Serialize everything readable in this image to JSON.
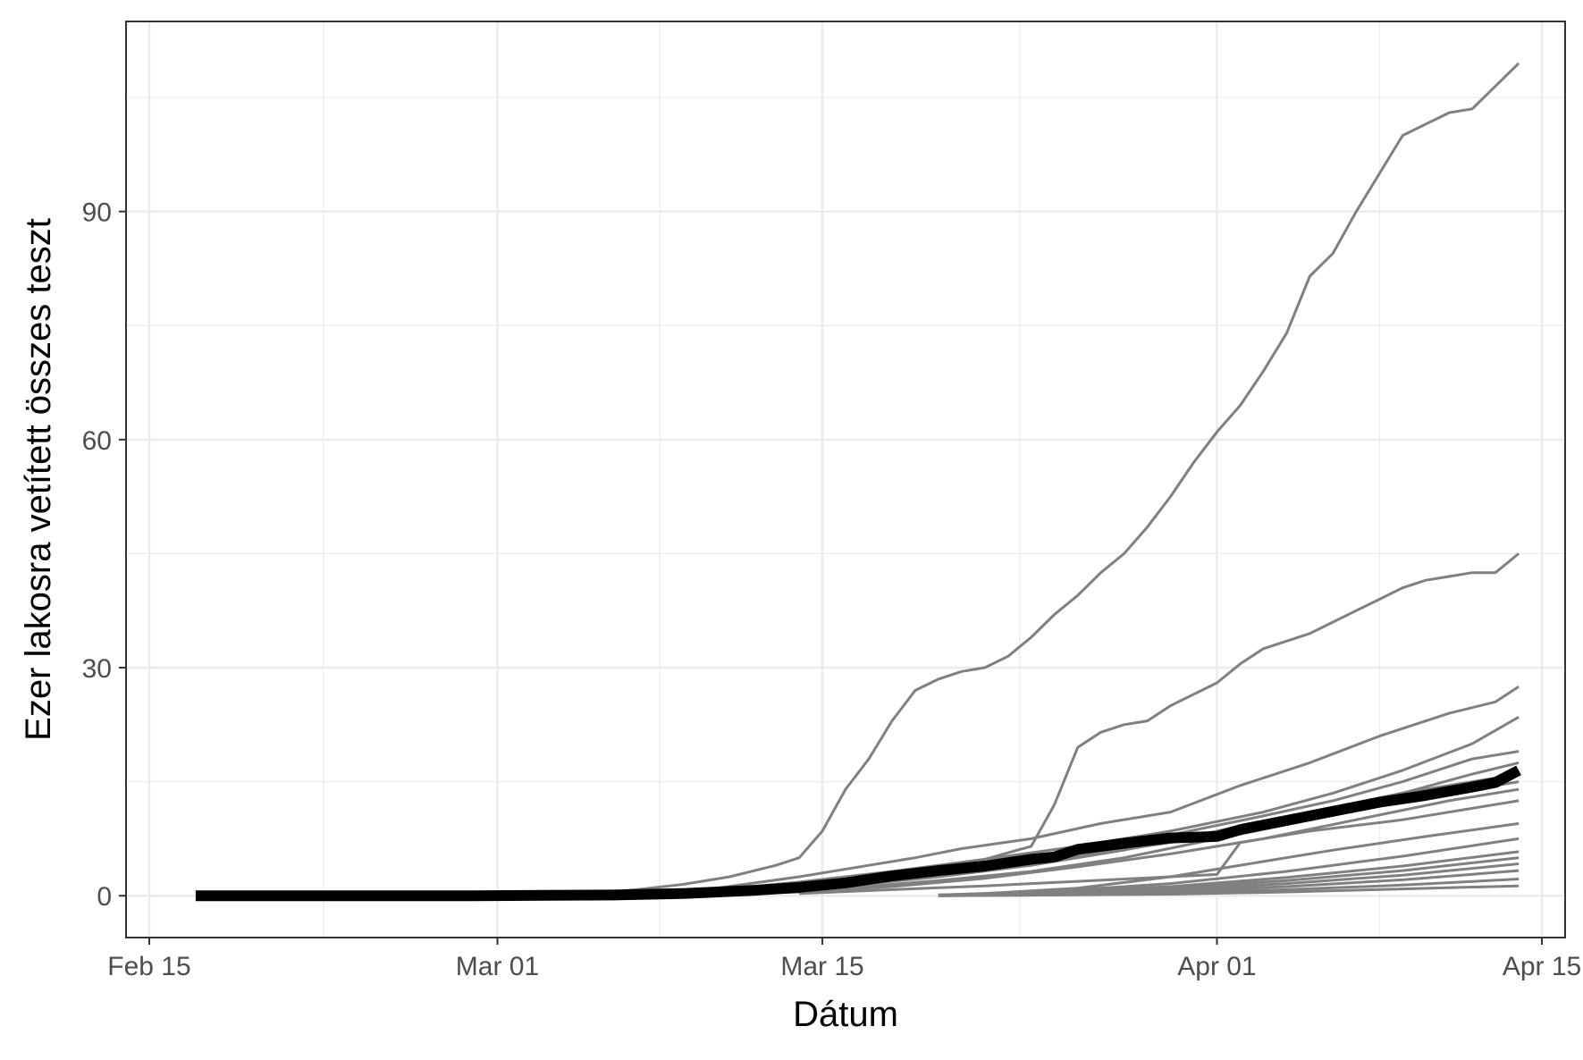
{
  "chart_data": {
    "type": "line",
    "title": "",
    "xlabel": "Dátum",
    "ylabel": "Ezer lakosra vetített összes teszt",
    "x_axis": {
      "type": "date",
      "range": [
        "2020-02-14",
        "2020-04-16"
      ],
      "ticks": [
        {
          "value": "2020-02-15",
          "label": "Feb 15"
        },
        {
          "value": "2020-03-01",
          "label": "Mar 01"
        },
        {
          "value": "2020-03-15",
          "label": "Mar 15"
        },
        {
          "value": "2020-04-01",
          "label": "Apr 01"
        },
        {
          "value": "2020-04-15",
          "label": "Apr 15"
        }
      ]
    },
    "y_axis": {
      "range": [
        -5.5,
        115
      ],
      "ticks": [
        0,
        30,
        60,
        90
      ]
    },
    "grid": true,
    "legend": "none",
    "colors": {
      "series": "#808080",
      "highlight": "#000000",
      "grid": "#ebebeb",
      "border": "#333333"
    },
    "series": [
      {
        "role": "country",
        "x": [
          "2020-03-05",
          "2020-03-07",
          "2020-03-09",
          "2020-03-11",
          "2020-03-13",
          "2020-03-14",
          "2020-03-15",
          "2020-03-16",
          "2020-03-17",
          "2020-03-18",
          "2020-03-19",
          "2020-03-20",
          "2020-03-21",
          "2020-03-22",
          "2020-03-23",
          "2020-03-24",
          "2020-03-25",
          "2020-03-26",
          "2020-03-27",
          "2020-03-28",
          "2020-03-29",
          "2020-03-30",
          "2020-03-31",
          "2020-04-01",
          "2020-04-02",
          "2020-04-03",
          "2020-04-04",
          "2020-04-05",
          "2020-04-06",
          "2020-04-07",
          "2020-04-08",
          "2020-04-09",
          "2020-04-10",
          "2020-04-11",
          "2020-04-12",
          "2020-04-13",
          "2020-04-14"
        ],
        "y": [
          0.3,
          0.8,
          1.5,
          2.5,
          4,
          5,
          8.5,
          14,
          18,
          23,
          27,
          28.5,
          29.5,
          30,
          31.5,
          34,
          37,
          39.5,
          42.5,
          45,
          48.5,
          52.5,
          57,
          61,
          64.5,
          69,
          74,
          81.5,
          84.5,
          90,
          95,
          100,
          101.5,
          103,
          103.5,
          106.5,
          109.5
        ]
      },
      {
        "role": "country",
        "x": [
          "2020-03-10",
          "2020-03-12",
          "2020-03-14",
          "2020-03-16",
          "2020-03-18",
          "2020-03-20",
          "2020-03-22",
          "2020-03-24",
          "2020-03-25",
          "2020-03-26",
          "2020-03-27",
          "2020-03-28",
          "2020-03-29",
          "2020-03-30",
          "2020-03-31",
          "2020-04-01",
          "2020-04-02",
          "2020-04-03",
          "2020-04-04",
          "2020-04-05",
          "2020-04-06",
          "2020-04-07",
          "2020-04-08",
          "2020-04-09",
          "2020-04-10",
          "2020-04-11",
          "2020-04-12",
          "2020-04-13",
          "2020-04-14"
        ],
        "y": [
          0.2,
          0.5,
          1,
          1.6,
          2.5,
          3.6,
          4.8,
          6.5,
          12,
          19.5,
          21.5,
          22.5,
          23,
          25,
          26.5,
          28,
          30.5,
          32.5,
          33.5,
          34.5,
          36,
          37.5,
          39,
          40.5,
          41.5,
          42,
          42.5,
          42.5,
          45
        ]
      },
      {
        "role": "country",
        "x": [
          "2020-03-05",
          "2020-03-10",
          "2020-03-14",
          "2020-03-17",
          "2020-03-19",
          "2020-03-21",
          "2020-03-24",
          "2020-03-27",
          "2020-03-30",
          "2020-04-02",
          "2020-04-05",
          "2020-04-08",
          "2020-04-11",
          "2020-04-13",
          "2020-04-14"
        ],
        "y": [
          0.1,
          0.8,
          2.5,
          4,
          5,
          6.2,
          7.5,
          9.5,
          11,
          14.5,
          17.5,
          21,
          24,
          25.5,
          27.5
        ]
      },
      {
        "role": "country",
        "x": [
          "2020-03-05",
          "2020-03-10",
          "2020-03-14",
          "2020-03-18",
          "2020-03-22",
          "2020-03-26",
          "2020-03-30",
          "2020-04-03",
          "2020-04-06",
          "2020-04-09",
          "2020-04-12",
          "2020-04-14"
        ],
        "y": [
          0.1,
          0.6,
          1.8,
          3.2,
          4.8,
          6.5,
          8.5,
          11,
          13.5,
          16.5,
          20,
          23.5
        ]
      },
      {
        "role": "country",
        "x": [
          "2020-03-05",
          "2020-03-10",
          "2020-03-14",
          "2020-03-18",
          "2020-03-22",
          "2020-03-26",
          "2020-03-30",
          "2020-04-03",
          "2020-04-06",
          "2020-04-09",
          "2020-04-12",
          "2020-04-14"
        ],
        "y": [
          0.1,
          0.5,
          1.5,
          2.8,
          4.3,
          6,
          8,
          10.5,
          12.5,
          15,
          18,
          19
        ]
      },
      {
        "role": "country",
        "x": [
          "2020-03-05",
          "2020-03-10",
          "2020-03-14",
          "2020-03-18",
          "2020-03-22",
          "2020-03-26",
          "2020-03-30",
          "2020-04-03",
          "2020-04-06",
          "2020-04-09",
          "2020-04-12",
          "2020-04-14"
        ],
        "y": [
          0.1,
          0.4,
          1.2,
          2.3,
          3.6,
          5.2,
          7,
          9.5,
          11.5,
          13.5,
          16,
          17.5
        ]
      },
      {
        "role": "country",
        "x": [
          "2020-03-08",
          "2020-03-12",
          "2020-03-16",
          "2020-03-20",
          "2020-03-24",
          "2020-03-28",
          "2020-04-01",
          "2020-04-05",
          "2020-04-09",
          "2020-04-12",
          "2020-04-14"
        ],
        "y": [
          0.1,
          0.5,
          1.3,
          2.5,
          4,
          6,
          8.5,
          11,
          13.5,
          15,
          16
        ]
      },
      {
        "role": "country",
        "x": [
          "2020-03-08",
          "2020-03-12",
          "2020-03-16",
          "2020-03-20",
          "2020-03-24",
          "2020-03-28",
          "2020-04-01",
          "2020-04-05",
          "2020-04-09",
          "2020-04-12",
          "2020-04-14"
        ],
        "y": [
          0.1,
          0.4,
          1,
          2,
          3.2,
          5,
          7.5,
          10,
          12.5,
          14,
          15
        ]
      },
      {
        "role": "country",
        "x": [
          "2020-03-10",
          "2020-03-14",
          "2020-03-18",
          "2020-03-22",
          "2020-03-26",
          "2020-03-30",
          "2020-04-03",
          "2020-04-07",
          "2020-04-11",
          "2020-04-14"
        ],
        "y": [
          0.1,
          0.5,
          1.2,
          2.3,
          3.8,
          5.5,
          7.5,
          10,
          12.5,
          14
        ]
      },
      {
        "role": "country",
        "x": [
          "2020-03-14",
          "2020-03-18",
          "2020-03-22",
          "2020-03-26",
          "2020-03-30",
          "2020-04-01",
          "2020-04-02",
          "2020-04-05",
          "2020-04-09",
          "2020-04-12",
          "2020-04-14"
        ],
        "y": [
          0.3,
          0.8,
          1.3,
          1.9,
          2.5,
          2.8,
          7,
          8.5,
          10,
          11.5,
          12.5
        ]
      },
      {
        "role": "country",
        "x": [
          "2020-03-22",
          "2020-03-26",
          "2020-03-30",
          "2020-04-03",
          "2020-04-06",
          "2020-04-10",
          "2020-04-14"
        ],
        "y": [
          0.3,
          1,
          2.5,
          4.5,
          6,
          7.8,
          9.5
        ]
      },
      {
        "role": "country",
        "x": [
          "2020-03-20",
          "2020-03-25",
          "2020-03-30",
          "2020-04-04",
          "2020-04-09",
          "2020-04-14"
        ],
        "y": [
          0.1,
          0.6,
          1.6,
          3.2,
          5.2,
          7.5
        ]
      },
      {
        "role": "country",
        "x": [
          "2020-03-20",
          "2020-03-25",
          "2020-03-30",
          "2020-04-04",
          "2020-04-09",
          "2020-04-14"
        ],
        "y": [
          0.1,
          0.5,
          1.2,
          2.4,
          3.9,
          5.8
        ]
      },
      {
        "role": "country",
        "x": [
          "2020-03-20",
          "2020-03-25",
          "2020-03-30",
          "2020-04-04",
          "2020-04-09",
          "2020-04-14"
        ],
        "y": [
          0.1,
          0.4,
          1,
          2,
          3.3,
          5
        ]
      },
      {
        "role": "country",
        "x": [
          "2020-03-20",
          "2020-03-25",
          "2020-03-30",
          "2020-04-04",
          "2020-04-09",
          "2020-04-14"
        ],
        "y": [
          0.1,
          0.3,
          0.8,
          1.6,
          2.7,
          4.2
        ]
      },
      {
        "role": "country",
        "x": [
          "2020-03-20",
          "2020-03-25",
          "2020-03-30",
          "2020-04-04",
          "2020-04-09",
          "2020-04-14"
        ],
        "y": [
          0,
          0.2,
          0.6,
          1.2,
          2.1,
          3.3
        ]
      },
      {
        "role": "country",
        "x": [
          "2020-03-20",
          "2020-03-25",
          "2020-03-30",
          "2020-04-04",
          "2020-04-09",
          "2020-04-14"
        ],
        "y": [
          0,
          0.1,
          0.4,
          0.8,
          1.4,
          2.2
        ]
      },
      {
        "role": "country",
        "x": [
          "2020-03-20",
          "2020-03-25",
          "2020-03-30",
          "2020-04-04",
          "2020-04-09",
          "2020-04-14"
        ],
        "y": [
          0,
          0.1,
          0.2,
          0.5,
          0.9,
          1.3
        ]
      },
      {
        "role": "average",
        "x": [
          "2020-02-17",
          "2020-02-20",
          "2020-02-23",
          "2020-02-26",
          "2020-02-29",
          "2020-03-03",
          "2020-03-06",
          "2020-03-09",
          "2020-03-12",
          "2020-03-14",
          "2020-03-16",
          "2020-03-18",
          "2020-03-20",
          "2020-03-22",
          "2020-03-24",
          "2020-03-25",
          "2020-03-26",
          "2020-03-28",
          "2020-03-30",
          "2020-04-01",
          "2020-04-02",
          "2020-04-04",
          "2020-04-06",
          "2020-04-08",
          "2020-04-10",
          "2020-04-12",
          "2020-04-13",
          "2020-04-14"
        ],
        "y": [
          0,
          0,
          0,
          0,
          0,
          0.05,
          0.1,
          0.3,
          0.7,
          1.1,
          1.7,
          2.6,
          3.3,
          3.9,
          4.8,
          5.1,
          6.1,
          6.9,
          7.6,
          7.8,
          8.7,
          9.9,
          11.1,
          12.3,
          13.2,
          14.3,
          14.9,
          16.5
        ]
      }
    ]
  }
}
